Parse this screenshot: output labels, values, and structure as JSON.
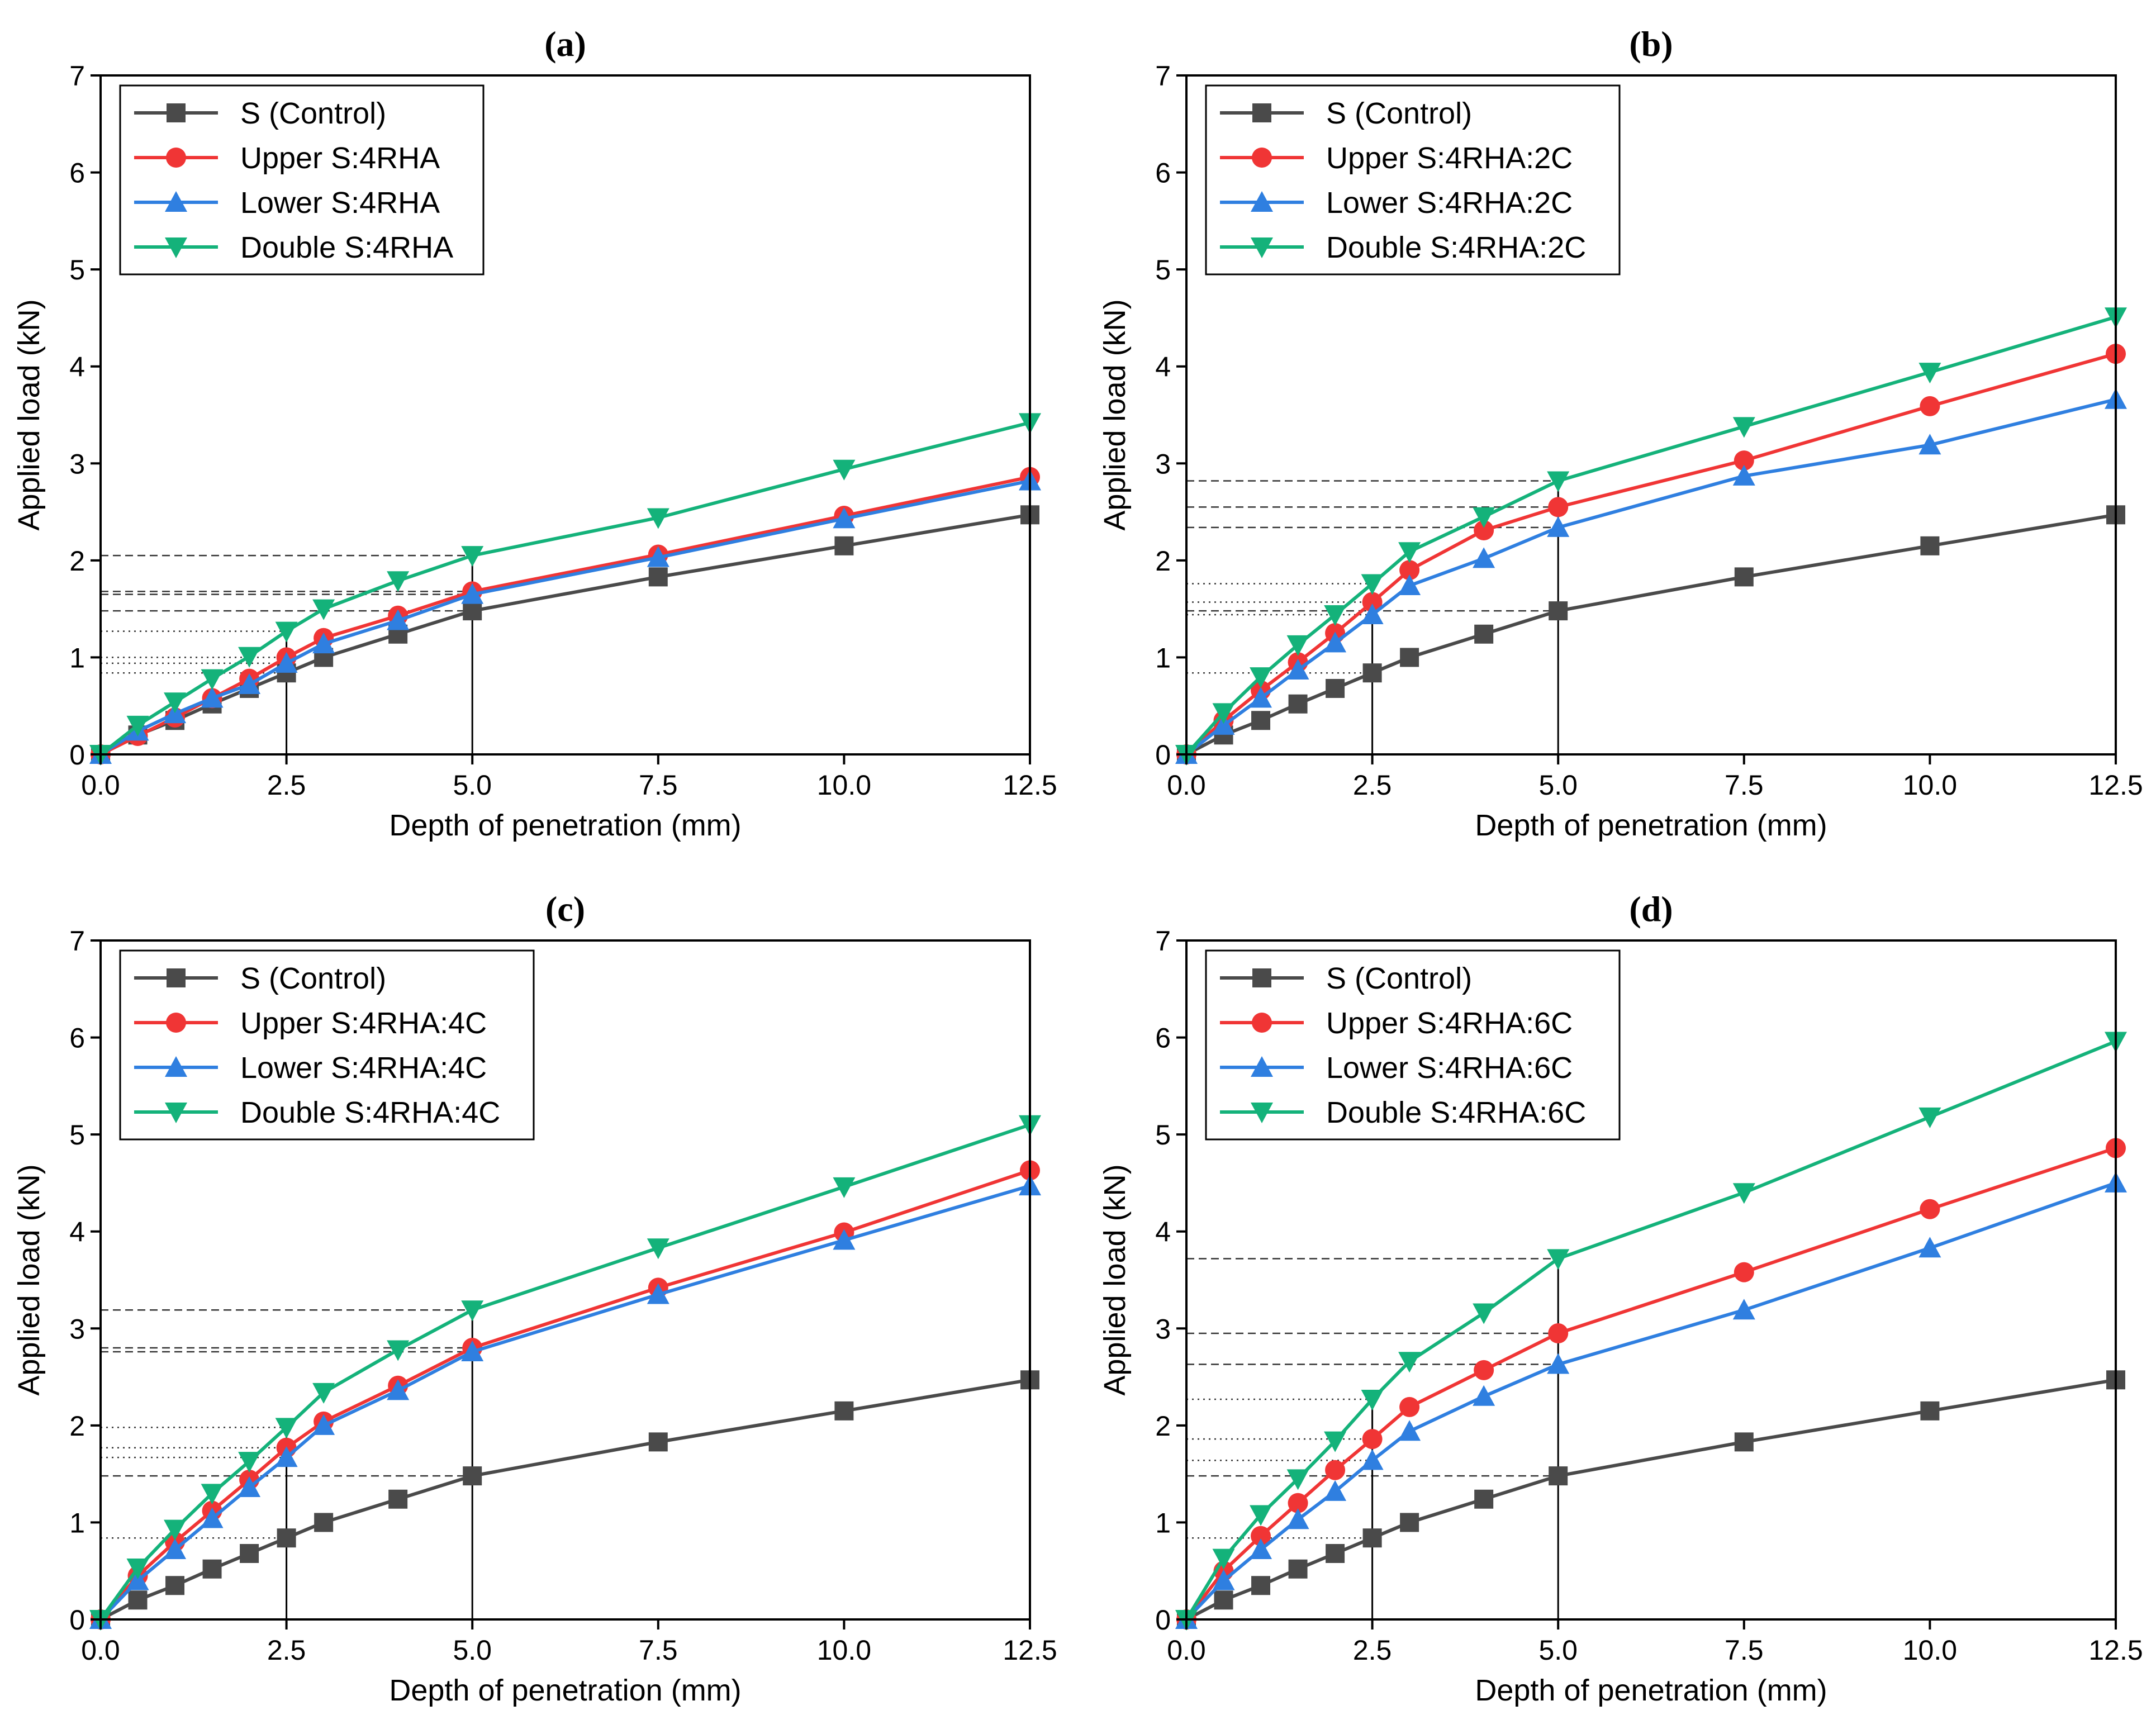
{
  "figure": {
    "colors": {
      "control": "#4a4a4a",
      "upper": "#f03535",
      "lower": "#2f7fe0",
      "double": "#14b27a",
      "axis": "#000000",
      "guide": "#333333"
    }
  },
  "chart_data": [
    {
      "panel": "(a)",
      "type": "line",
      "title": "(a)",
      "xlabel": "Depth of penetration (mm)",
      "ylabel": "Applied load (kN)",
      "xlim": [
        0,
        12.5
      ],
      "ylim": [
        0,
        7
      ],
      "x_ticks": [
        "0.0",
        "2.5",
        "5.0",
        "7.5",
        "10.0",
        "12.5"
      ],
      "y_ticks": [
        "0",
        "1",
        "2",
        "3",
        "4",
        "5",
        "6",
        "7"
      ],
      "legend_position": "top-left",
      "x": [
        0,
        0.5,
        1.0,
        1.5,
        2.0,
        2.5,
        3.0,
        4.0,
        5.0,
        7.5,
        10.0,
        12.5
      ],
      "series": [
        {
          "name": "S (Control)",
          "key": "control",
          "marker": "square",
          "values": [
            0,
            0.2,
            0.35,
            0.52,
            0.68,
            0.84,
            1.0,
            1.24,
            1.48,
            1.83,
            2.15,
            2.47
          ]
        },
        {
          "name": "Upper S:4RHA",
          "key": "upper",
          "marker": "circle",
          "values": [
            0,
            0.19,
            0.38,
            0.58,
            0.78,
            1.0,
            1.2,
            1.43,
            1.68,
            2.06,
            2.46,
            2.86
          ]
        },
        {
          "name": "Lower S:4RHA",
          "key": "lower",
          "marker": "triangle-up",
          "values": [
            0,
            0.24,
            0.42,
            0.58,
            0.72,
            0.94,
            1.14,
            1.38,
            1.65,
            2.03,
            2.43,
            2.82
          ]
        },
        {
          "name": "Double S:4RHA",
          "key": "double",
          "marker": "triangle-down",
          "values": [
            0,
            0.3,
            0.54,
            0.78,
            1.01,
            1.27,
            1.5,
            1.79,
            2.05,
            2.44,
            2.94,
            3.42
          ]
        }
      ]
    },
    {
      "panel": "(b)",
      "type": "line",
      "title": "(b)",
      "xlabel": "Depth of penetration (mm)",
      "ylabel": "Applied load (kN)",
      "xlim": [
        0,
        12.5
      ],
      "ylim": [
        0,
        7
      ],
      "x_ticks": [
        "0.0",
        "2.5",
        "5.0",
        "7.5",
        "10.0",
        "12.5"
      ],
      "y_ticks": [
        "0",
        "1",
        "2",
        "3",
        "4",
        "5",
        "6",
        "7"
      ],
      "legend_position": "top-left",
      "x": [
        0,
        0.5,
        1.0,
        1.5,
        2.0,
        2.5,
        3.0,
        4.0,
        5.0,
        7.5,
        10.0,
        12.5
      ],
      "series": [
        {
          "name": "S (Control)",
          "key": "control",
          "marker": "square",
          "values": [
            0,
            0.2,
            0.35,
            0.52,
            0.68,
            0.84,
            1.0,
            1.24,
            1.48,
            1.83,
            2.15,
            2.47
          ]
        },
        {
          "name": "Upper S:4RHA:2C",
          "key": "upper",
          "marker": "circle",
          "values": [
            0,
            0.35,
            0.66,
            0.95,
            1.25,
            1.57,
            1.9,
            2.31,
            2.55,
            3.03,
            3.59,
            4.13
          ]
        },
        {
          "name": "Lower S:4RHA:2C",
          "key": "lower",
          "marker": "triangle-up",
          "values": [
            0,
            0.3,
            0.58,
            0.87,
            1.15,
            1.44,
            1.74,
            2.02,
            2.34,
            2.87,
            3.19,
            3.66
          ]
        },
        {
          "name": "Double S:4RHA:2C",
          "key": "double",
          "marker": "triangle-down",
          "values": [
            0,
            0.43,
            0.8,
            1.13,
            1.44,
            1.76,
            2.09,
            2.45,
            2.82,
            3.38,
            3.94,
            4.51
          ]
        }
      ]
    },
    {
      "panel": "(c)",
      "type": "line",
      "title": "(c)",
      "xlabel": "Depth of penetration (mm)",
      "ylabel": "Applied load (kN)",
      "xlim": [
        0,
        12.5
      ],
      "ylim": [
        0,
        7
      ],
      "x_ticks": [
        "0.0",
        "2.5",
        "5.0",
        "7.5",
        "10.0",
        "12.5"
      ],
      "y_ticks": [
        "0",
        "1",
        "2",
        "3",
        "4",
        "5",
        "6",
        "7"
      ],
      "legend_position": "top-left",
      "x": [
        0,
        0.5,
        1.0,
        1.5,
        2.0,
        2.5,
        3.0,
        4.0,
        5.0,
        7.5,
        10.0,
        12.5
      ],
      "series": [
        {
          "name": "S (Control)",
          "key": "control",
          "marker": "square",
          "values": [
            0,
            0.2,
            0.35,
            0.52,
            0.68,
            0.84,
            1.0,
            1.24,
            1.48,
            1.83,
            2.15,
            2.47
          ]
        },
        {
          "name": "Upper S:4RHA:4C",
          "key": "upper",
          "marker": "circle",
          "values": [
            0,
            0.45,
            0.8,
            1.12,
            1.44,
            1.77,
            2.04,
            2.41,
            2.8,
            3.42,
            3.99,
            4.63
          ]
        },
        {
          "name": "Lower S:4RHA:4C",
          "key": "lower",
          "marker": "triangle-up",
          "values": [
            0,
            0.4,
            0.72,
            1.04,
            1.36,
            1.67,
            2.0,
            2.36,
            2.76,
            3.35,
            3.91,
            4.47
          ]
        },
        {
          "name": "Double S:4RHA:4C",
          "key": "double",
          "marker": "triangle-down",
          "values": [
            0,
            0.53,
            0.93,
            1.3,
            1.63,
            1.98,
            2.34,
            2.78,
            3.19,
            3.83,
            4.46,
            5.1
          ]
        }
      ]
    },
    {
      "panel": "(d)",
      "type": "line",
      "title": "(d)",
      "xlabel": "Depth of penetration (mm)",
      "ylabel": "Applied load (kN)",
      "xlim": [
        0,
        12.5
      ],
      "ylim": [
        0,
        7
      ],
      "x_ticks": [
        "0.0",
        "2.5",
        "5.0",
        "7.5",
        "10.0",
        "12.5"
      ],
      "y_ticks": [
        "0",
        "1",
        "2",
        "3",
        "4",
        "5",
        "6",
        "7"
      ],
      "legend_position": "top-left",
      "x": [
        0,
        0.5,
        1.0,
        1.5,
        2.0,
        2.5,
        3.0,
        4.0,
        5.0,
        7.5,
        10.0,
        12.5
      ],
      "series": [
        {
          "name": "S (Control)",
          "key": "control",
          "marker": "square",
          "values": [
            0,
            0.2,
            0.35,
            0.52,
            0.68,
            0.84,
            1.0,
            1.24,
            1.48,
            1.83,
            2.15,
            2.47
          ]
        },
        {
          "name": "Upper S:4RHA:6C",
          "key": "upper",
          "marker": "circle",
          "values": [
            0,
            0.5,
            0.86,
            1.2,
            1.54,
            1.86,
            2.19,
            2.57,
            2.95,
            3.58,
            4.23,
            4.86
          ]
        },
        {
          "name": "Lower S:4RHA:6C",
          "key": "lower",
          "marker": "triangle-up",
          "values": [
            0,
            0.4,
            0.72,
            1.03,
            1.32,
            1.64,
            1.94,
            2.3,
            2.63,
            3.19,
            3.83,
            4.5
          ]
        },
        {
          "name": "Double S:4RHA:6C",
          "key": "double",
          "marker": "triangle-down",
          "values": [
            0,
            0.63,
            1.08,
            1.45,
            1.84,
            2.27,
            2.66,
            3.16,
            3.72,
            4.4,
            5.18,
            5.96
          ]
        }
      ]
    }
  ]
}
